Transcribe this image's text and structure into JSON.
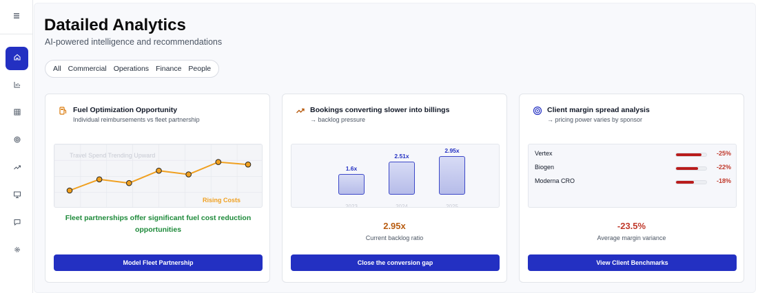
{
  "page": {
    "title": "Datailed Analytics",
    "subtitle": "AI-powered intelligence and recommendations"
  },
  "sidebar": {
    "menu_icon": "menu-icon",
    "items": [
      {
        "icon": "home-icon",
        "active": true
      },
      {
        "icon": "bar-chart-icon",
        "active": false
      },
      {
        "icon": "grid-icon",
        "active": false
      },
      {
        "icon": "target-icon",
        "active": false
      },
      {
        "icon": "trending-up-icon",
        "active": false
      },
      {
        "icon": "presentation-icon",
        "active": false
      },
      {
        "icon": "message-icon",
        "active": false
      },
      {
        "icon": "settings-icon",
        "active": false
      }
    ]
  },
  "filters": [
    "All",
    "Commercial",
    "Operations",
    "Finance",
    "People"
  ],
  "cards": {
    "fuel": {
      "title": "Fuel Optimization Opportunity",
      "subtitle": "Individual reimbursements vs fleet partnership",
      "chart_label": "Travel Spend Trending Upward",
      "rising_label": "Rising Costs",
      "insight": "Fleet partnerships offer significant fuel cost reduction opportunities",
      "button": "Model Fleet Partnership",
      "accent": "#f0a020"
    },
    "bookings": {
      "title": "Bookings converting slower into billings",
      "subtitle": "→ backlog pressure",
      "bars": [
        {
          "label": "1.6x",
          "year": "2023"
        },
        {
          "label": "2.51x",
          "year": "2024"
        },
        {
          "label": "2.95x",
          "year": "2025"
        }
      ],
      "value": "2.95x",
      "value_label": "Current backlog ratio",
      "button": "Close the conversion gap",
      "accent": "#b85c10"
    },
    "clients": {
      "title": "Client margin spread analysis",
      "subtitle": "→ pricing power varies by sponsor",
      "rows": [
        {
          "name": "Vertex",
          "value": "-25%",
          "magnitude": 25
        },
        {
          "name": "Biogen",
          "value": "-22%",
          "magnitude": 22
        },
        {
          "name": "Moderna CRO",
          "value": "-18%",
          "magnitude": 18
        }
      ],
      "value": "-23.5%",
      "value_label": "Average margin variance",
      "button": "View Client Benchmarks",
      "accent": "#c0392b"
    }
  },
  "chart_data": [
    {
      "type": "line",
      "title": "Travel Spend Trending Upward",
      "x": [
        1,
        2,
        3,
        4,
        5,
        6,
        7
      ],
      "series": [
        {
          "values": [
            1.0,
            2.8,
            2.2,
            4.2,
            3.6,
            5.6,
            5.2
          ]
        }
      ],
      "annotation": "Rising Costs",
      "grid": true
    },
    {
      "type": "bar",
      "categories": [
        "2023",
        "2024",
        "2025"
      ],
      "values": [
        1.6,
        2.51,
        2.95
      ]
    }
  ],
  "colors": {
    "primary": "#2330c2",
    "positive": "#1e8a3a",
    "negative": "#c0392b",
    "line": "#f0a020"
  }
}
